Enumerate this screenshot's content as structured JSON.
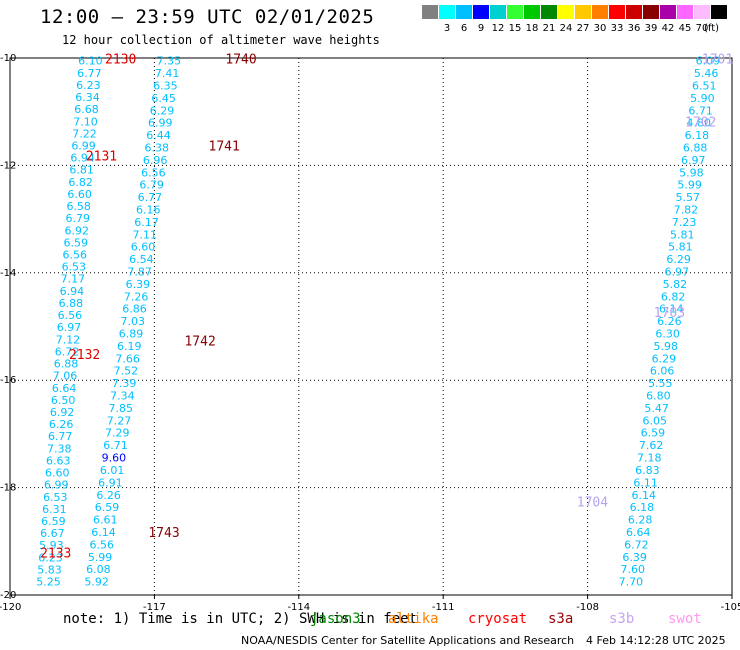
{
  "header": {
    "title": "12:00 – 23:59 UTC 02/01/2025",
    "subtitle": "12 hour collection of altimeter wave heights"
  },
  "legend": {
    "unit": "(ft)",
    "swatches": [
      {
        "label": "",
        "color": "#808080"
      },
      {
        "label": "3",
        "color": "#00ffff"
      },
      {
        "label": "6",
        "color": "#00bfff"
      },
      {
        "label": "9",
        "color": "#0000ff"
      },
      {
        "label": "12",
        "color": "#00d0d0"
      },
      {
        "label": "15",
        "color": "#33ff33"
      },
      {
        "label": "18",
        "color": "#00c800"
      },
      {
        "label": "21",
        "color": "#008800"
      },
      {
        "label": "24",
        "color": "#ffff00"
      },
      {
        "label": "27",
        "color": "#ffc800"
      },
      {
        "label": "30",
        "color": "#ff8000"
      },
      {
        "label": "33",
        "color": "#ff0000"
      },
      {
        "label": "36",
        "color": "#cc0000"
      },
      {
        "label": "39",
        "color": "#880000"
      },
      {
        "label": "42",
        "color": "#aa00aa"
      },
      {
        "label": "45",
        "color": "#ff66ff"
      },
      {
        "label": "70",
        "color": "#ffbbff"
      },
      {
        "label": "",
        "color": "#000000"
      }
    ]
  },
  "map": {
    "lon_range": [
      -120,
      -105
    ],
    "lat_range": [
      -20,
      -10
    ],
    "x_ticks": [
      "-120",
      "-117",
      "-114",
      "-111",
      "-108",
      "-105"
    ],
    "x_tick_values": [
      -120,
      -117,
      -114,
      -111,
      -108,
      -105
    ],
    "y_ticks": [
      "-10",
      "-12",
      "-14",
      "-16",
      "-18",
      "-20"
    ],
    "y_tick_values": [
      -10,
      -12,
      -14,
      -16,
      -18,
      -20
    ],
    "colors": {
      "cyan": "#00bfff",
      "blue": "#0000ff",
      "red": "#dd0000",
      "darkred": "#880000",
      "lilac": "#b8a2f0"
    },
    "tracks": [
      {
        "name": "track-west-a",
        "lon_start": -118.33,
        "lon_end": -119.2,
        "values": [
          "6.10",
          "6.77",
          "6.23",
          "6.34",
          "6.68",
          "7.10",
          "7.22",
          "6.99",
          "6.94",
          "6.81",
          "6.82",
          "6.60",
          "6.58",
          "6.79",
          "6.92",
          "6.59",
          "6.56",
          "6.53",
          "7.17",
          "6.94",
          "6.88",
          "6.56",
          "6.97",
          "7.12",
          "6.72",
          "6.88",
          "7.06",
          "6.64",
          "6.50",
          "6.92",
          "6.26",
          "6.77",
          "7.38",
          "6.63",
          "6.60",
          "6.99",
          "6.53",
          "6.31",
          "6.59",
          "6.67",
          "5.93",
          "6.23",
          "5.83",
          "5.25"
        ],
        "colors": {}
      },
      {
        "name": "track-west-b",
        "lon_start": -116.7,
        "lon_end": -118.2,
        "values": [
          "7.35",
          "7.41",
          "6.35",
          "6.45",
          "6.29",
          "6.99",
          "6.44",
          "6.38",
          "6.96",
          "6.56",
          "6.79",
          "6.77",
          "6.16",
          "6.17",
          "7.11",
          "6.60",
          "6.54",
          "7.87",
          "6.39",
          "7.26",
          "6.86",
          "7.03",
          "6.89",
          "6.19",
          "7.66",
          "7.52",
          "7.39",
          "7.34",
          "7.85",
          "7.27",
          "7.29",
          "6.71",
          "9.60",
          "6.01",
          "6.91",
          "6.26",
          "6.59",
          "6.61",
          "6.14",
          "6.56",
          "5.99",
          "6.08",
          "5.92"
        ],
        "colors": {
          "32": "blue"
        }
      },
      {
        "name": "track-east-a",
        "lon_start": -105.5,
        "lon_end": -107.1,
        "values": [
          "6.09",
          "5.46",
          "6.51",
          "5.90",
          "6.71",
          "4.80",
          "6.18",
          "6.88",
          "6.97",
          "5.98",
          "5.99",
          "5.57",
          "7.82",
          "7.23",
          "5.81",
          "5.81",
          "6.29",
          "6.97",
          "5.82",
          "6.82",
          "6.14",
          "6.26",
          "6.30",
          "5.98",
          "6.29",
          "6.06",
          "5.55",
          "6.80",
          "5.47",
          "6.05",
          "6.59",
          "7.62",
          "7.18",
          "6.83",
          "6.11",
          "6.14",
          "6.18",
          "6.28",
          "6.64",
          "6.72",
          "6.39",
          "7.60",
          "7.70"
        ],
        "colors": {}
      }
    ],
    "pass_labels": [
      {
        "text": "2130",
        "lon": -117.7,
        "lat": -10.03,
        "color": "red"
      },
      {
        "text": "1740",
        "lon": -115.2,
        "lat": -10.03,
        "color": "darkred"
      },
      {
        "text": "2131",
        "lon": -118.1,
        "lat": -11.83,
        "color": "red"
      },
      {
        "text": "1741",
        "lon": -115.55,
        "lat": -11.65,
        "color": "darkred"
      },
      {
        "text": "2132",
        "lon": -118.45,
        "lat": -15.53,
        "color": "red"
      },
      {
        "text": "1742",
        "lon": -116.05,
        "lat": -15.28,
        "color": "darkred"
      },
      {
        "text": "1743",
        "lon": -116.8,
        "lat": -18.85,
        "color": "darkred"
      },
      {
        "text": "2133",
        "lon": -119.05,
        "lat": -19.23,
        "color": "red"
      },
      {
        "text": "1701",
        "lon": -105.3,
        "lat": -10.03,
        "color": "lilac"
      },
      {
        "text": "1702",
        "lon": -105.65,
        "lat": -11.2,
        "color": "lilac"
      },
      {
        "text": "1703",
        "lon": -106.3,
        "lat": -14.75,
        "color": "lilac"
      },
      {
        "text": "1704",
        "lon": -107.9,
        "lat": -18.28,
        "color": "lilac"
      }
    ]
  },
  "footer": {
    "note": "note:  1) Time is in UTC; 2) SWH is in feet",
    "satellites": [
      {
        "name": "jason3",
        "color": "#008800"
      },
      {
        "name": "altika",
        "color": "#ff8000"
      },
      {
        "name": "cryosat",
        "color": "#ff0000"
      },
      {
        "name": "s3a",
        "color": "#990000"
      },
      {
        "name": "s3b",
        "color": "#c4a4f4"
      },
      {
        "name": "swot",
        "color": "#ff99ee"
      }
    ],
    "credit": "NOAA/NESDIS Center for Satellite Applications and Research",
    "timestamp": "4 Feb 14:12:28 UTC 2025"
  }
}
